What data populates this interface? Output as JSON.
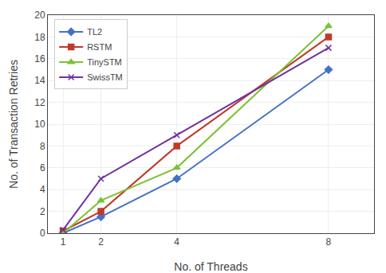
{
  "chart_data": {
    "type": "line",
    "xlabel": "No. of Threads",
    "ylabel": "No. of Transaction Retries",
    "x": [
      1,
      2,
      4,
      8
    ],
    "series": [
      {
        "name": "TL2",
        "color": "#4472C4",
        "marker": "diamond",
        "values": [
          0,
          1.5,
          5,
          15
        ]
      },
      {
        "name": "RSTM",
        "color": "#C0392B",
        "marker": "square",
        "values": [
          0.2,
          2,
          8,
          18
        ]
      },
      {
        "name": "TinySTM",
        "color": "#7DC134",
        "marker": "triangle",
        "values": [
          0,
          3,
          6,
          19
        ]
      },
      {
        "name": "SwissTM",
        "color": "#7030A0",
        "marker": "x",
        "values": [
          0.3,
          5,
          9,
          17
        ]
      }
    ],
    "xlim": [
      0.6,
      9.2
    ],
    "xticks": [
      1,
      2,
      4,
      8
    ],
    "ylim": [
      0,
      20
    ],
    "yticks": [
      0,
      2,
      4,
      6,
      8,
      10,
      12,
      14,
      16,
      18,
      20
    ],
    "grid": true,
    "legend": "upper left"
  }
}
